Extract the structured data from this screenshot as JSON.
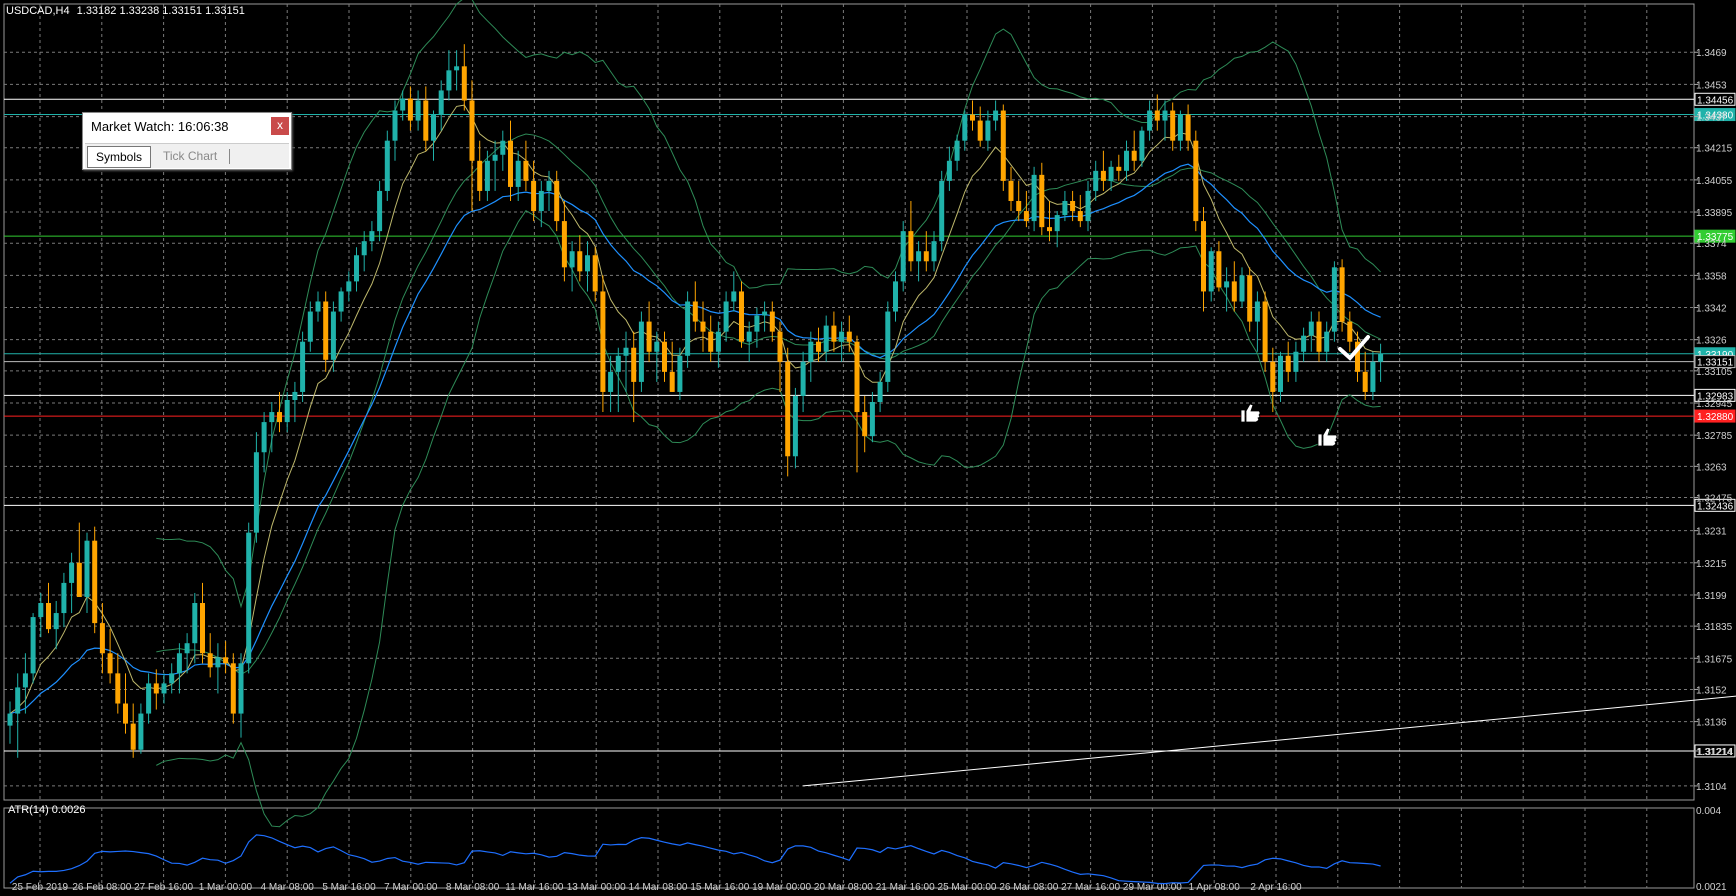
{
  "header": {
    "symbol_text": "USDCAD,H4",
    "ohlc_text": "1.33182 1.33238 1.33151 1.33151"
  },
  "market_watch": {
    "title": "Market Watch: 16:06:38",
    "close_label": "x",
    "tabs": [
      "Symbols",
      "Tick Chart"
    ],
    "active_tab": "Symbols"
  },
  "colors": {
    "background": "#000000",
    "grid": "#7a7a7a",
    "bull_candle": "#20b2aa",
    "bear_candle": "#ffa500",
    "bollinger": "#2e8b57",
    "ma_fast": "#bdb76b",
    "ma_slow": "#1e90ff",
    "axis_text": "#d0d0d0",
    "atr_line": "#1e6fff",
    "current_price": "#20b2aa",
    "resistance_green": "#32cd32",
    "support_red": "#ff2020"
  },
  "chart_data": [
    {
      "type": "candlestick",
      "title": "",
      "symbol": "USDCAD",
      "timeframe": "H4",
      "ylim": [
        1.3097,
        1.3493
      ],
      "x_tick_labels": [
        "25 Feb 2019",
        "26 Feb 08:00",
        "27 Feb 16:00",
        "1 Mar 00:00",
        "4 Mar 08:00",
        "5 Mar 16:00",
        "7 Mar 00:00",
        "8 Mar 08:00",
        "11 Mar 16:00",
        "13 Mar 00:00",
        "14 Mar 08:00",
        "15 Mar 16:00",
        "19 Mar 00:00",
        "20 Mar 08:00",
        "21 Mar 16:00",
        "25 Mar 00:00",
        "26 Mar 08:00",
        "27 Mar 16:00",
        "29 Mar 00:00",
        "1 Apr 08:00",
        "2 Apr 16:00"
      ],
      "y_tick_labels": [
        1.3469,
        1.3453,
        1.3437,
        1.34215,
        1.34055,
        1.33895,
        1.3374,
        1.3358,
        1.3342,
        1.3326,
        1.33105,
        1.32945,
        1.32785,
        1.3263,
        1.32475,
        1.3231,
        1.3215,
        1.3199,
        1.31835,
        1.31675,
        1.3152,
        1.3136,
        1.31214,
        1.3104
      ],
      "horizontal_levels": [
        {
          "label": "1.34456",
          "value": 1.34456,
          "color": "#ffffff"
        },
        {
          "label": "1.34380",
          "value": 1.3438,
          "color": "#20b2aa"
        },
        {
          "label": "1.33775",
          "value": 1.33775,
          "color": "#32cd32"
        },
        {
          "label": "1.33190",
          "value": 1.3319,
          "color": "#20b2aa"
        },
        {
          "label": "1.33151",
          "value": 1.33151,
          "color": "#bbbbbb"
        },
        {
          "label": "1.32983",
          "value": 1.32983,
          "color": "#ffffff"
        },
        {
          "label": "1.32880",
          "value": 1.3288,
          "color": "#ff2020"
        },
        {
          "label": "1.32436",
          "value": 1.32436,
          "color": "#ffffff"
        },
        {
          "label": "1.31214",
          "value": 1.31214,
          "color": "#ffffff"
        }
      ],
      "trendline": {
        "from": {
          "bar": 103,
          "price": 1.3104
        },
        "to": {
          "bar": 240,
          "price": 1.31545
        }
      },
      "candles": [
        [
          1.3134,
          1.3146,
          1.3125,
          1.314
        ],
        [
          1.314,
          1.316,
          1.3118,
          1.3153
        ],
        [
          1.3153,
          1.317,
          1.314,
          1.316
        ],
        [
          1.316,
          1.319,
          1.3155,
          1.3188
        ],
        [
          1.3188,
          1.32,
          1.3178,
          1.3195
        ],
        [
          1.3195,
          1.3205,
          1.318,
          1.3182
        ],
        [
          1.3182,
          1.3196,
          1.3172,
          1.319
        ],
        [
          1.319,
          1.321,
          1.3183,
          1.3205
        ],
        [
          1.3205,
          1.322,
          1.319,
          1.3215
        ],
        [
          1.3215,
          1.3235,
          1.32,
          1.3198
        ],
        [
          1.3198,
          1.323,
          1.319,
          1.3226
        ],
        [
          1.3226,
          1.3233,
          1.318,
          1.3185
        ],
        [
          1.3185,
          1.3195,
          1.316,
          1.317
        ],
        [
          1.317,
          1.3182,
          1.3155,
          1.316
        ],
        [
          1.316,
          1.317,
          1.314,
          1.3145
        ],
        [
          1.3145,
          1.316,
          1.313,
          1.3135
        ],
        [
          1.3135,
          1.3145,
          1.3118,
          1.3122
        ],
        [
          1.3122,
          1.3145,
          1.312,
          1.314
        ],
        [
          1.314,
          1.316,
          1.3135,
          1.3155
        ],
        [
          1.3155,
          1.3162,
          1.3142,
          1.315
        ],
        [
          1.315,
          1.316,
          1.3145,
          1.3155
        ],
        [
          1.3155,
          1.3165,
          1.315,
          1.316
        ],
        [
          1.316,
          1.3175,
          1.315,
          1.317
        ],
        [
          1.317,
          1.318,
          1.316,
          1.3175
        ],
        [
          1.3175,
          1.32,
          1.3165,
          1.3195
        ],
        [
          1.3195,
          1.3205,
          1.3165,
          1.317
        ],
        [
          1.317,
          1.318,
          1.3158,
          1.3163
        ],
        [
          1.3163,
          1.3175,
          1.315,
          1.3168
        ],
        [
          1.3168,
          1.3176,
          1.316,
          1.3165
        ],
        [
          1.3165,
          1.317,
          1.3135,
          1.314
        ],
        [
          1.314,
          1.317,
          1.3128,
          1.3165
        ],
        [
          1.3165,
          1.3235,
          1.316,
          1.323
        ],
        [
          1.323,
          1.328,
          1.3225,
          1.327
        ],
        [
          1.327,
          1.329,
          1.326,
          1.3285
        ],
        [
          1.3285,
          1.3295,
          1.327,
          1.329
        ],
        [
          1.329,
          1.33,
          1.328,
          1.3285
        ],
        [
          1.3285,
          1.33,
          1.328,
          1.3296
        ],
        [
          1.3296,
          1.3305,
          1.3285,
          1.33
        ],
        [
          1.33,
          1.333,
          1.3295,
          1.3325
        ],
        [
          1.3325,
          1.3345,
          1.332,
          1.334
        ],
        [
          1.334,
          1.335,
          1.3335,
          1.3345
        ],
        [
          1.3345,
          1.335,
          1.331,
          1.3316
        ],
        [
          1.3316,
          1.3345,
          1.331,
          1.334
        ],
        [
          1.334,
          1.3352,
          1.3335,
          1.335
        ],
        [
          1.335,
          1.336,
          1.3345,
          1.3355
        ],
        [
          1.3355,
          1.3372,
          1.335,
          1.3368
        ],
        [
          1.3368,
          1.338,
          1.336,
          1.3375
        ],
        [
          1.3375,
          1.3385,
          1.337,
          1.338
        ],
        [
          1.338,
          1.3405,
          1.3375,
          1.34
        ],
        [
          1.34,
          1.343,
          1.3395,
          1.3425
        ],
        [
          1.3425,
          1.3445,
          1.3415,
          1.344
        ],
        [
          1.344,
          1.345,
          1.3435,
          1.3446
        ],
        [
          1.3446,
          1.3452,
          1.343,
          1.3435
        ],
        [
          1.3435,
          1.345,
          1.343,
          1.3445
        ],
        [
          1.3445,
          1.3452,
          1.342,
          1.3425
        ],
        [
          1.3425,
          1.344,
          1.3415,
          1.3438
        ],
        [
          1.3438,
          1.3455,
          1.343,
          1.345
        ],
        [
          1.345,
          1.347,
          1.3445,
          1.346
        ],
        [
          1.346,
          1.347,
          1.345,
          1.3462
        ],
        [
          1.3462,
          1.3473,
          1.344,
          1.3445
        ],
        [
          1.3445,
          1.3455,
          1.339,
          1.3415
        ],
        [
          1.3415,
          1.3425,
          1.3395,
          1.34
        ],
        [
          1.34,
          1.342,
          1.3395,
          1.3415
        ],
        [
          1.3415,
          1.3425,
          1.34,
          1.3418
        ],
        [
          1.3418,
          1.343,
          1.341,
          1.3425
        ],
        [
          1.3425,
          1.3435,
          1.3395,
          1.3402
        ],
        [
          1.3402,
          1.342,
          1.3395,
          1.3415
        ],
        [
          1.3415,
          1.3425,
          1.34,
          1.3405
        ],
        [
          1.3405,
          1.3415,
          1.3385,
          1.339
        ],
        [
          1.339,
          1.3405,
          1.3382,
          1.34
        ],
        [
          1.34,
          1.341,
          1.339,
          1.3405
        ],
        [
          1.3405,
          1.341,
          1.338,
          1.3385
        ],
        [
          1.3385,
          1.3395,
          1.3355,
          1.3362
        ],
        [
          1.3362,
          1.3375,
          1.335,
          1.337
        ],
        [
          1.337,
          1.3378,
          1.3355,
          1.336
        ],
        [
          1.336,
          1.3375,
          1.335,
          1.3368
        ],
        [
          1.3368,
          1.3372,
          1.3345,
          1.335
        ],
        [
          1.335,
          1.3358,
          1.329,
          1.33
        ],
        [
          1.33,
          1.3318,
          1.329,
          1.331
        ],
        [
          1.331,
          1.3322,
          1.329,
          1.3318
        ],
        [
          1.3318,
          1.333,
          1.33,
          1.3322
        ],
        [
          1.3322,
          1.333,
          1.3285,
          1.3305
        ],
        [
          1.3305,
          1.334,
          1.33,
          1.3335
        ],
        [
          1.3335,
          1.3345,
          1.3315,
          1.332
        ],
        [
          1.332,
          1.333,
          1.3305,
          1.3325
        ],
        [
          1.3325,
          1.333,
          1.3305,
          1.331
        ],
        [
          1.331,
          1.3325,
          1.33,
          1.33
        ],
        [
          1.33,
          1.3322,
          1.3296,
          1.3318
        ],
        [
          1.3318,
          1.335,
          1.3312,
          1.3345
        ],
        [
          1.3345,
          1.3355,
          1.333,
          1.3335
        ],
        [
          1.3335,
          1.3345,
          1.332,
          1.333
        ],
        [
          1.333,
          1.3338,
          1.3315,
          1.332
        ],
        [
          1.332,
          1.3335,
          1.3312,
          1.333
        ],
        [
          1.333,
          1.335,
          1.3325,
          1.3345
        ],
        [
          1.3345,
          1.336,
          1.334,
          1.335
        ],
        [
          1.335,
          1.3355,
          1.3322,
          1.3325
        ],
        [
          1.3325,
          1.3335,
          1.3315,
          1.333
        ],
        [
          1.333,
          1.3342,
          1.3322,
          1.3338
        ],
        [
          1.3338,
          1.3345,
          1.333,
          1.334
        ],
        [
          1.334,
          1.3345,
          1.3325,
          1.333
        ],
        [
          1.333,
          1.3335,
          1.33,
          1.3315
        ],
        [
          1.3315,
          1.3322,
          1.3258,
          1.3268
        ],
        [
          1.3268,
          1.3302,
          1.3262,
          1.3298
        ],
        [
          1.3298,
          1.332,
          1.329,
          1.3315
        ],
        [
          1.3315,
          1.333,
          1.3305,
          1.3325
        ],
        [
          1.3325,
          1.3332,
          1.3315,
          1.332
        ],
        [
          1.332,
          1.3338,
          1.3315,
          1.3333
        ],
        [
          1.3333,
          1.334,
          1.332,
          1.3325
        ],
        [
          1.3325,
          1.3335,
          1.3315,
          1.333
        ],
        [
          1.333,
          1.3338,
          1.332,
          1.3325
        ],
        [
          1.3325,
          1.3328,
          1.326,
          1.329
        ],
        [
          1.329,
          1.3298,
          1.327,
          1.3278
        ],
        [
          1.3278,
          1.33,
          1.3275,
          1.3295
        ],
        [
          1.3295,
          1.331,
          1.329,
          1.3305
        ],
        [
          1.3305,
          1.3345,
          1.33,
          1.334
        ],
        [
          1.334,
          1.336,
          1.3335,
          1.3355
        ],
        [
          1.3355,
          1.3385,
          1.335,
          1.338
        ],
        [
          1.338,
          1.3395,
          1.336,
          1.3365
        ],
        [
          1.3365,
          1.3375,
          1.3355,
          1.337
        ],
        [
          1.337,
          1.338,
          1.336,
          1.3365
        ],
        [
          1.3365,
          1.338,
          1.336,
          1.3375
        ],
        [
          1.3375,
          1.341,
          1.337,
          1.3405
        ],
        [
          1.3405,
          1.3422,
          1.34,
          1.3415
        ],
        [
          1.3415,
          1.3428,
          1.341,
          1.3425
        ],
        [
          1.3425,
          1.344,
          1.342,
          1.3438
        ],
        [
          1.3438,
          1.3445,
          1.343,
          1.3435
        ],
        [
          1.3435,
          1.3442,
          1.3422,
          1.3425
        ],
        [
          1.3425,
          1.344,
          1.342,
          1.3435
        ],
        [
          1.3435,
          1.3445,
          1.343,
          1.344
        ],
        [
          1.344,
          1.3443,
          1.34,
          1.3405
        ],
        [
          1.3405,
          1.3412,
          1.339,
          1.3395
        ],
        [
          1.3395,
          1.3405,
          1.3385,
          1.339
        ],
        [
          1.339,
          1.34,
          1.3382,
          1.3385
        ],
        [
          1.3385,
          1.3412,
          1.338,
          1.3408
        ],
        [
          1.3408,
          1.3414,
          1.3378,
          1.3382
        ],
        [
          1.3382,
          1.3395,
          1.3375,
          1.338
        ],
        [
          1.338,
          1.339,
          1.3372,
          1.3388
        ],
        [
          1.3388,
          1.34,
          1.3385,
          1.3395
        ],
        [
          1.3395,
          1.34,
          1.3385,
          1.339
        ],
        [
          1.339,
          1.3398,
          1.3382,
          1.3385
        ],
        [
          1.3385,
          1.3405,
          1.338,
          1.34
        ],
        [
          1.34,
          1.3415,
          1.3395,
          1.341
        ],
        [
          1.341,
          1.342,
          1.34,
          1.3405
        ],
        [
          1.3405,
          1.3415,
          1.34,
          1.3412
        ],
        [
          1.3412,
          1.3418,
          1.3405,
          1.341
        ],
        [
          1.341,
          1.3425,
          1.3405,
          1.342
        ],
        [
          1.342,
          1.343,
          1.341,
          1.3415
        ],
        [
          1.3415,
          1.3432,
          1.3412,
          1.343
        ],
        [
          1.343,
          1.3445,
          1.3425,
          1.344
        ],
        [
          1.344,
          1.3448,
          1.343,
          1.3435
        ],
        [
          1.3435,
          1.3445,
          1.3425,
          1.344
        ],
        [
          1.344,
          1.3444,
          1.342,
          1.3425
        ],
        [
          1.3425,
          1.344,
          1.342,
          1.3438
        ],
        [
          1.3438,
          1.3443,
          1.342,
          1.3425
        ],
        [
          1.3425,
          1.343,
          1.338,
          1.3385
        ],
        [
          1.3385,
          1.3392,
          1.334,
          1.335
        ],
        [
          1.335,
          1.3372,
          1.3345,
          1.337
        ],
        [
          1.337,
          1.3375,
          1.335,
          1.3352
        ],
        [
          1.3352,
          1.3362,
          1.334,
          1.3355
        ],
        [
          1.3355,
          1.3365,
          1.334,
          1.3345
        ],
        [
          1.3345,
          1.3362,
          1.3342,
          1.3358
        ],
        [
          1.3358,
          1.3362,
          1.333,
          1.3335
        ],
        [
          1.3335,
          1.335,
          1.332,
          1.3345
        ],
        [
          1.3345,
          1.335,
          1.331,
          1.3315
        ],
        [
          1.3315,
          1.3322,
          1.329,
          1.33
        ],
        [
          1.33,
          1.332,
          1.3295,
          1.3318
        ],
        [
          1.3318,
          1.3325,
          1.3305,
          1.331
        ],
        [
          1.331,
          1.3325,
          1.3305,
          1.332
        ],
        [
          1.332,
          1.3332,
          1.3315,
          1.3328
        ],
        [
          1.3328,
          1.334,
          1.332,
          1.3335
        ],
        [
          1.3335,
          1.334,
          1.3315,
          1.332
        ],
        [
          1.332,
          1.3335,
          1.3315,
          1.333
        ],
        [
          1.333,
          1.3365,
          1.3325,
          1.3362
        ],
        [
          1.3362,
          1.3366,
          1.333,
          1.3335
        ],
        [
          1.3335,
          1.334,
          1.332,
          1.3325
        ],
        [
          1.3325,
          1.333,
          1.3305,
          1.331
        ],
        [
          1.331,
          1.332,
          1.3296,
          1.33
        ],
        [
          1.33,
          1.332,
          1.3296,
          1.3315
        ],
        [
          1.3315,
          1.3324,
          1.3305,
          1.3319
        ]
      ],
      "indicators": {
        "bollinger_bands": "shown",
        "moving_average_fast": "shown",
        "moving_average_slow": "shown"
      }
    },
    {
      "type": "line",
      "title": "ATR(14) 0.0026",
      "name": "ATR(14)",
      "value": 0.0026,
      "ylim": [
        0.0021,
        0.004
      ],
      "y_tick_labels": [
        "0.004",
        "0.0021"
      ]
    }
  ]
}
